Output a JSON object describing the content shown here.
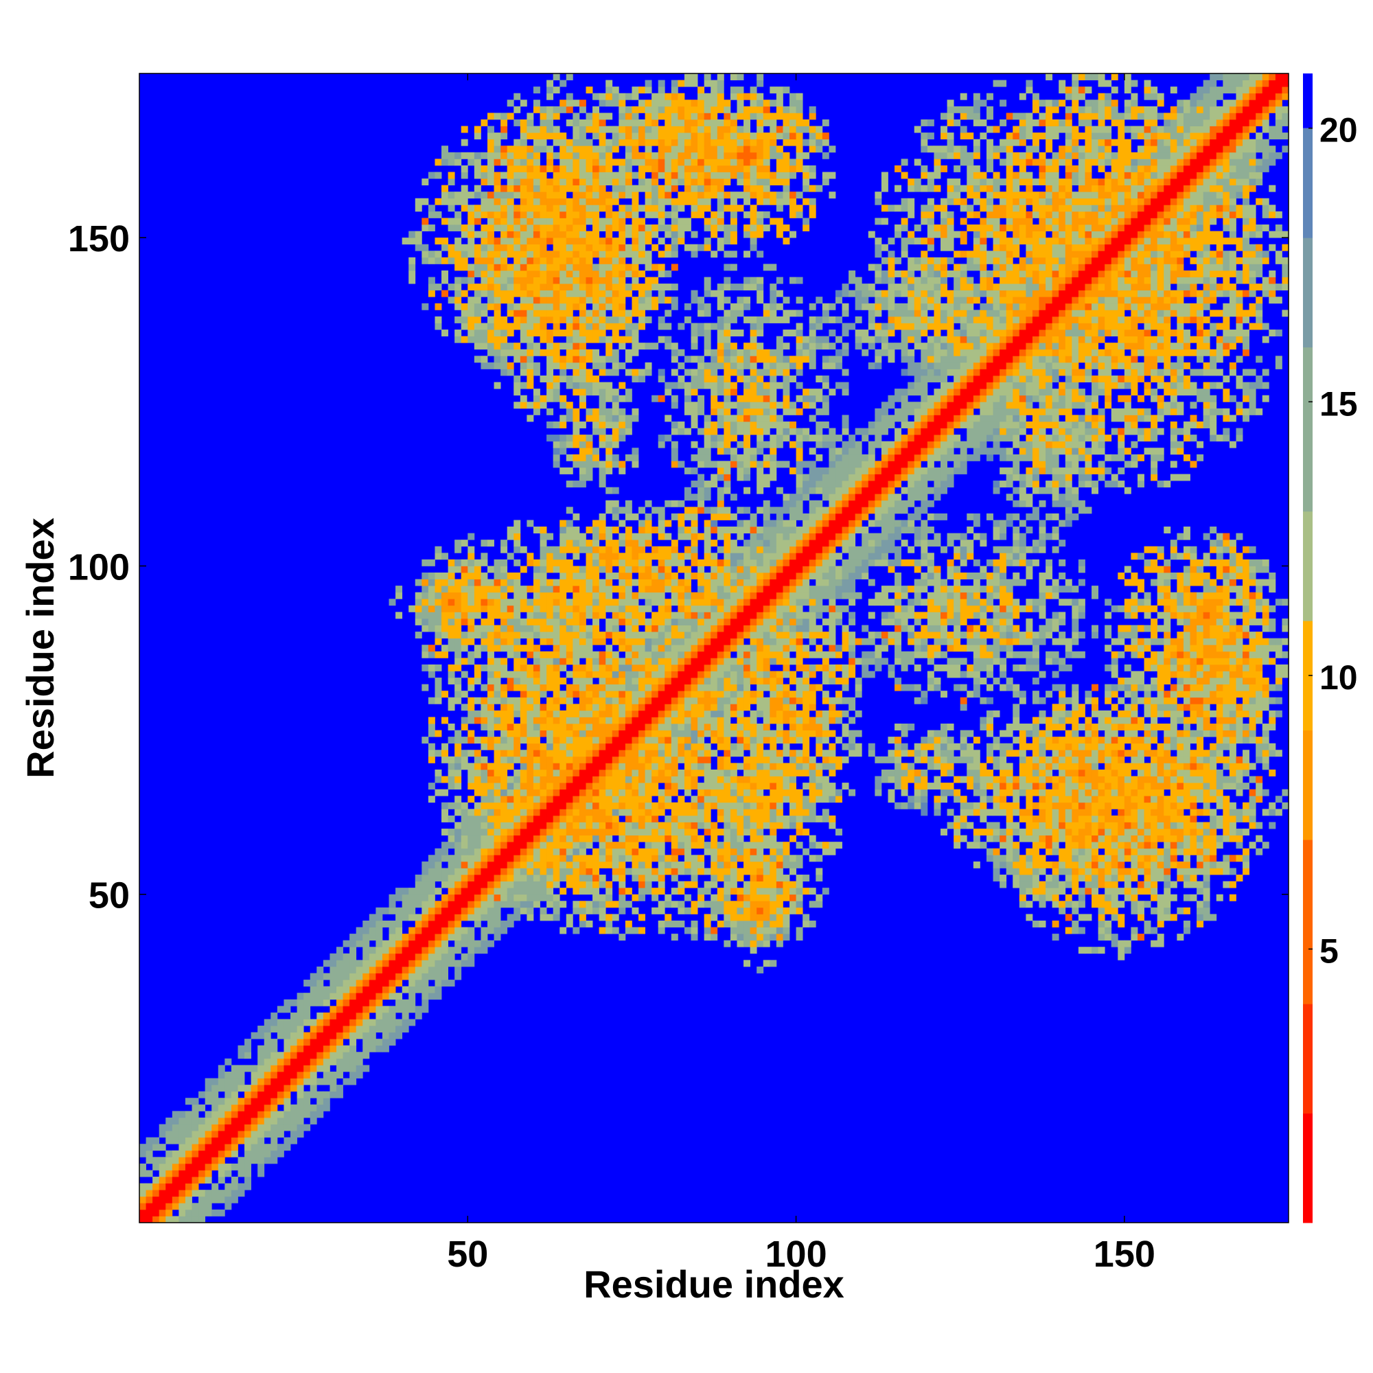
{
  "chart_data": {
    "type": "heatmap",
    "title": "",
    "xlabel": "Residue index",
    "ylabel": "Residue index",
    "xlim": [
      0,
      175
    ],
    "ylim": [
      0,
      175
    ],
    "x_ticks": [
      50,
      100,
      150
    ],
    "y_ticks": [
      50,
      100,
      150
    ],
    "n_residues": 175,
    "colorbar": {
      "ticks": [
        5,
        10,
        15,
        20
      ],
      "range": [
        0,
        21
      ],
      "colors": [
        "#ff0000",
        "#ff3300",
        "#ff6600",
        "#ff9900",
        "#ffb000",
        "#a9bf86",
        "#8fae95",
        "#7a9ca6",
        "#5f86b8",
        "#0000ff"
      ]
    },
    "description_of_values": "pairwise distance map, values above ~20 shown as saturated blue",
    "contact_blocks": [
      {
        "x": [
          45,
          108
        ],
        "y": [
          42,
          88
        ],
        "level": 14
      },
      {
        "x": [
          38,
          72
        ],
        "y": [
          88,
          100
        ],
        "level": 15
      },
      {
        "x": [
          58,
          100
        ],
        "y": [
          86,
          110
        ],
        "level": 14
      },
      {
        "x": [
          82,
          104
        ],
        "y": [
          40,
          60
        ],
        "level": 15
      },
      {
        "x": [
          40,
          82
        ],
        "y": [
          128,
          170
        ],
        "level": 14
      },
      {
        "x": [
          64,
          104
        ],
        "y": [
          154,
          174
        ],
        "level": 14
      },
      {
        "x": [
          62,
          76
        ],
        "y": [
          110,
          128
        ],
        "level": 16
      },
      {
        "x": [
          124,
          175
        ],
        "y": [
          110,
          174
        ],
        "level": 14
      },
      {
        "x": [
          120,
          175
        ],
        "y": [
          48,
          82
        ],
        "level": 14
      },
      {
        "x": [
          146,
          175
        ],
        "y": [
          70,
          106
        ],
        "level": 14
      },
      {
        "x": [
          104,
          146
        ],
        "y": [
          78,
          108
        ],
        "level": 16
      },
      {
        "x": [
          104,
          136
        ],
        "y": [
          128,
          148
        ],
        "level": 16
      }
    ],
    "hot_spots": [
      {
        "x": 47,
        "y": 94,
        "value": 6
      },
      {
        "x": 94,
        "y": 47,
        "value": 6
      },
      {
        "x": 92,
        "y": 162,
        "value": 5
      },
      {
        "x": 162,
        "y": 92,
        "value": 6
      },
      {
        "x": 71,
        "y": 101,
        "value": 7
      },
      {
        "x": 137,
        "y": 140,
        "value": 6
      },
      {
        "x": 86,
        "y": 79,
        "value": 7
      }
    ]
  }
}
